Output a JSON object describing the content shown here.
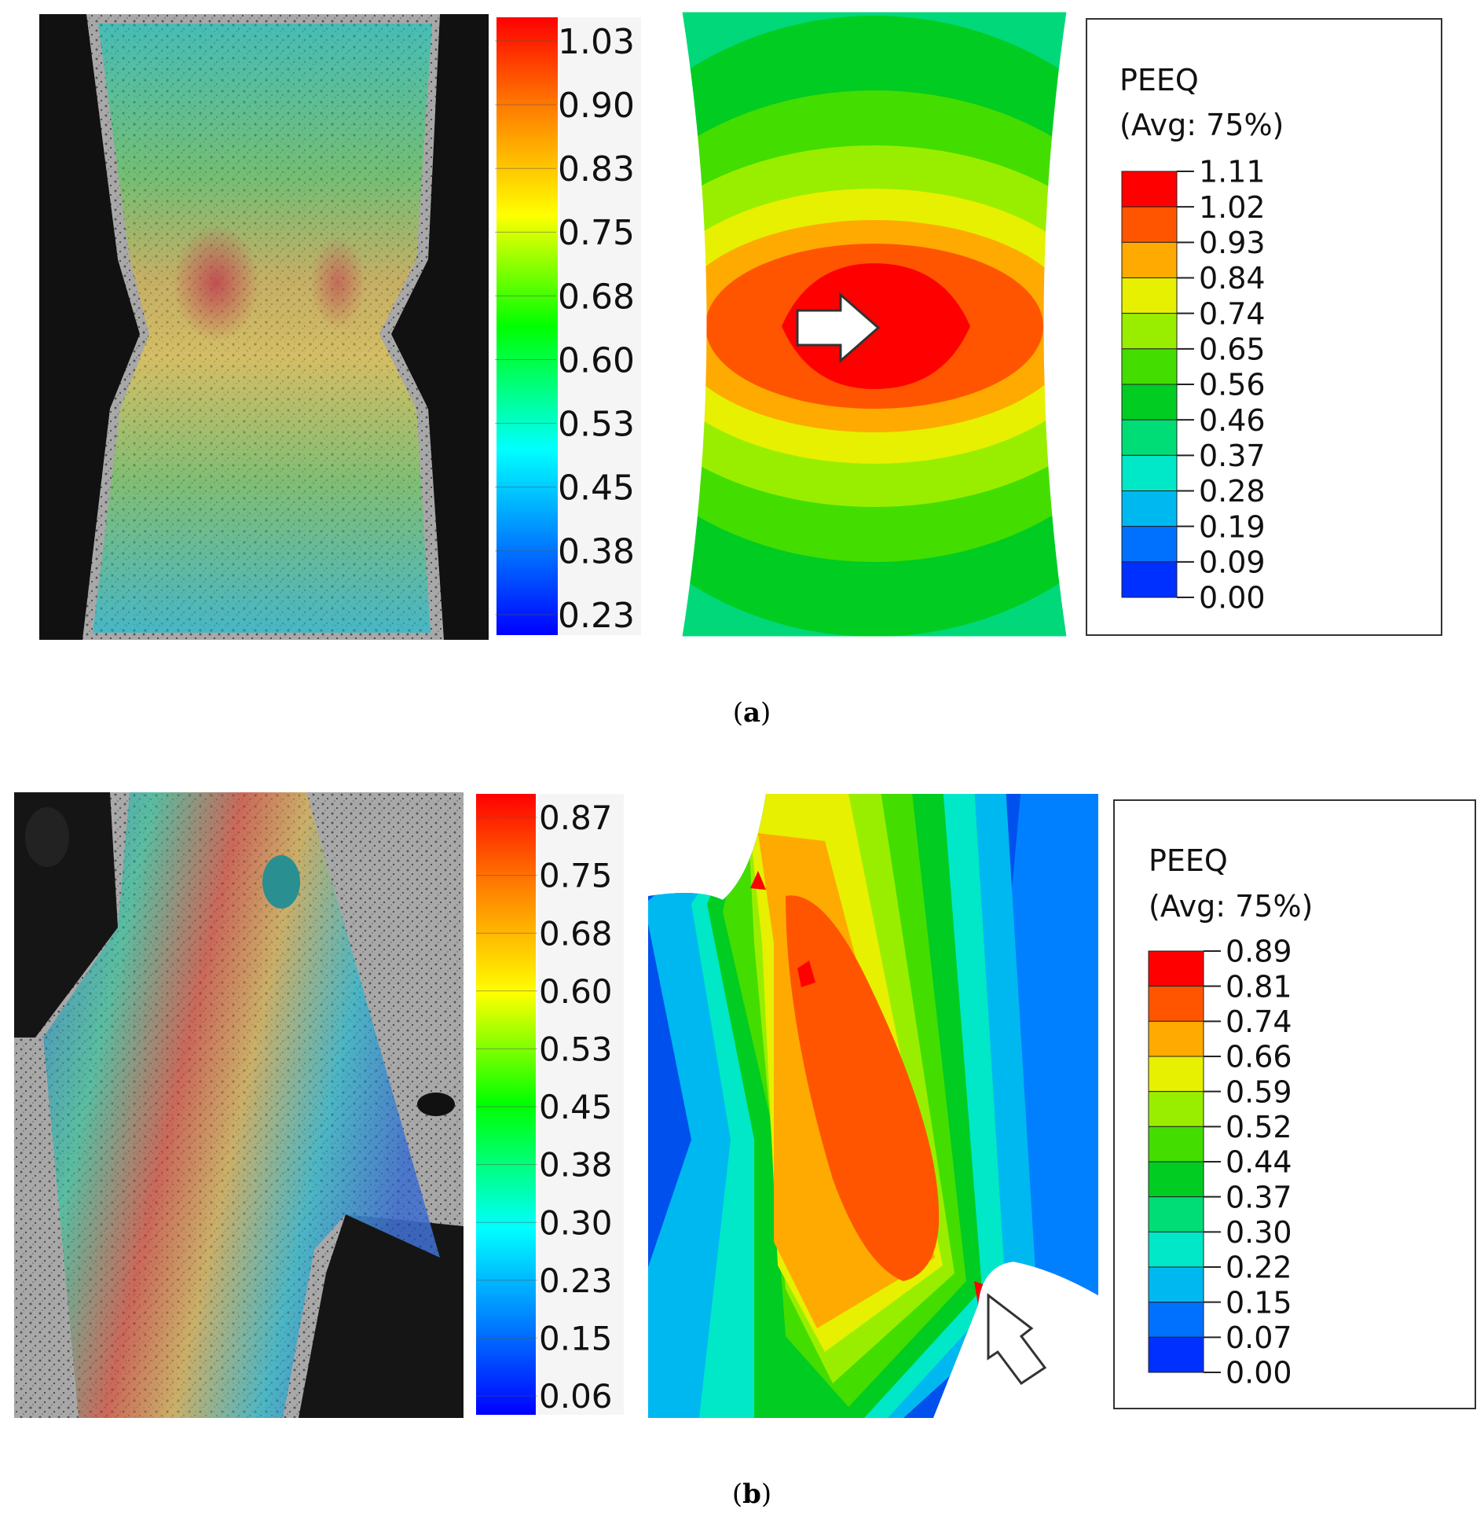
{
  "panels": [
    {
      "id": "a",
      "caption_label": "a",
      "dic_scale": [
        "1.03",
        "0.90",
        "0.83",
        "0.75",
        "0.68",
        "0.60",
        "0.53",
        "0.45",
        "0.38",
        "0.23"
      ],
      "fe_legend": {
        "title": "PEEQ",
        "subtitle": "(Avg: 75%)",
        "values": [
          "1.11",
          "1.02",
          "0.93",
          "0.84",
          "0.74",
          "0.65",
          "0.56",
          "0.46",
          "0.37",
          "0.28",
          "0.19",
          "0.09",
          "0.00"
        ]
      }
    },
    {
      "id": "b",
      "caption_label": "b",
      "dic_scale": [
        "0.87",
        "0.75",
        "0.68",
        "0.60",
        "0.53",
        "0.45",
        "0.38",
        "0.30",
        "0.23",
        "0.15",
        "0.06"
      ],
      "fe_legend": {
        "title": "PEEQ",
        "subtitle": "(Avg: 75%)",
        "values": [
          "0.89",
          "0.81",
          "0.74",
          "0.66",
          "0.59",
          "0.52",
          "0.44",
          "0.37",
          "0.30",
          "0.22",
          "0.15",
          "0.07",
          "0.00"
        ]
      }
    }
  ],
  "colors": {
    "legend_bins": [
      "#ff0000",
      "#ff5500",
      "#ffaa00",
      "#e6f000",
      "#99ee00",
      "#44dd00",
      "#00cc22",
      "#00dd77",
      "#00e8c8",
      "#00b8f0",
      "#0070ff",
      "#0030ff",
      "#0000cc"
    ],
    "arrow_fill": "#ffffff",
    "arrow_stroke": "#333333"
  }
}
